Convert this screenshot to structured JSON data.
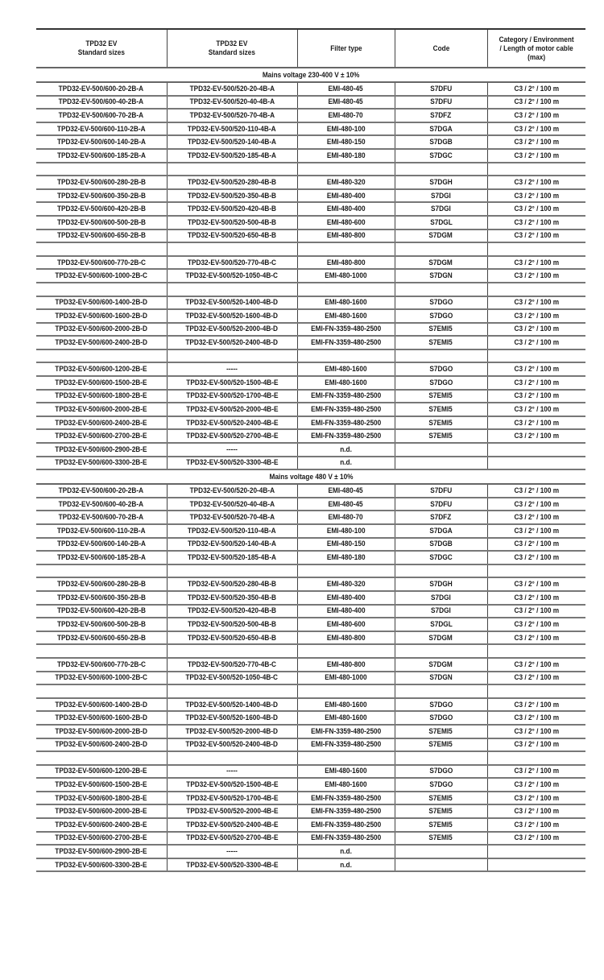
{
  "headers": [
    "TPD32 EV\nStandard sizes",
    "TPD32 EV\nStandard sizes",
    "Filter type",
    "Code",
    "Category / Environment\n/ Length of motor cable\n(max)"
  ],
  "sections": [
    {
      "title": "Mains voltage 230-400 V ± 10%",
      "rows": [
        [
          "TPD32-EV-500/600-20-2B-A",
          "TPD32-EV-500/520-20-4B-A",
          "EMI-480-45",
          "S7DFU",
          "C3 / 2° / 100 m"
        ],
        [
          "TPD32-EV-500/600-40-2B-A",
          "TPD32-EV-500/520-40-4B-A",
          "EMI-480-45",
          "S7DFU",
          "C3 / 2° / 100 m"
        ],
        [
          "TPD32-EV-500/600-70-2B-A",
          "TPD32-EV-500/520-70-4B-A",
          "EMI-480-70",
          "S7DFZ",
          "C3 / 2° / 100 m"
        ],
        [
          "TPD32-EV-500/600-110-2B-A",
          "TPD32-EV-500/520-110-4B-A",
          "EMI-480-100",
          "S7DGA",
          "C3 / 2° / 100 m"
        ],
        [
          "TPD32-EV-500/600-140-2B-A",
          "TPD32-EV-500/520-140-4B-A",
          "EMI-480-150",
          "S7DGB",
          "C3 / 2° / 100 m"
        ],
        [
          "TPD32-EV-500/600-185-2B-A",
          "TPD32-EV-500/520-185-4B-A",
          "EMI-480-180",
          "S7DGC",
          "C3 / 2° / 100 m"
        ],
        [
          "",
          "",
          "",
          "",
          ""
        ],
        [
          "TPD32-EV-500/600-280-2B-B",
          "TPD32-EV-500/520-280-4B-B",
          "EMI-480-320",
          "S7DGH",
          "C3 / 2° / 100 m"
        ],
        [
          "TPD32-EV-500/600-350-2B-B",
          "TPD32-EV-500/520-350-4B-B",
          "EMI-480-400",
          "S7DGI",
          "C3 / 2° / 100 m"
        ],
        [
          "TPD32-EV-500/600-420-2B-B",
          "TPD32-EV-500/520-420-4B-B",
          "EMI-480-400",
          "S7DGI",
          "C3 / 2° / 100 m"
        ],
        [
          "TPD32-EV-500/600-500-2B-B",
          "TPD32-EV-500/520-500-4B-B",
          "EMI-480-600",
          "S7DGL",
          "C3 / 2° / 100 m"
        ],
        [
          "TPD32-EV-500/600-650-2B-B",
          "TPD32-EV-500/520-650-4B-B",
          "EMI-480-800",
          "S7DGM",
          "C3 / 2° / 100 m"
        ],
        [
          "",
          "",
          "",
          "",
          ""
        ],
        [
          "TPD32-EV-500/600-770-2B-C",
          "TPD32-EV-500/520-770-4B-C",
          "EMI-480-800",
          "S7DGM",
          "C3 / 2° / 100 m"
        ],
        [
          "TPD32-EV-500/600-1000-2B-C",
          "TPD32-EV-500/520-1050-4B-C",
          "EMI-480-1000",
          "S7DGN",
          "C3 / 2° / 100 m"
        ],
        [
          "",
          "",
          "",
          "",
          ""
        ],
        [
          "TPD32-EV-500/600-1400-2B-D",
          "TPD32-EV-500/520-1400-4B-D",
          "EMI-480-1600",
          "S7DGO",
          "C3 / 2° / 100 m"
        ],
        [
          "TPD32-EV-500/600-1600-2B-D",
          "TPD32-EV-500/520-1600-4B-D",
          "EMI-480-1600",
          "S7DGO",
          "C3 / 2° / 100 m"
        ],
        [
          "TPD32-EV-500/600-2000-2B-D",
          "TPD32-EV-500/520-2000-4B-D",
          "EMI-FN-3359-480-2500",
          "S7EMI5",
          "C3 / 2° / 100 m"
        ],
        [
          "TPD32-EV-500/600-2400-2B-D",
          "TPD32-EV-500/520-2400-4B-D",
          "EMI-FN-3359-480-2500",
          "S7EMI5",
          "C3 / 2° / 100 m"
        ],
        [
          "",
          "",
          "",
          "",
          ""
        ],
        [
          "TPD32-EV-500/600-1200-2B-E",
          "-----",
          "EMI-480-1600",
          "S7DGO",
          "C3 / 2° / 100 m"
        ],
        [
          "TPD32-EV-500/600-1500-2B-E",
          "TPD32-EV-500/520-1500-4B-E",
          "EMI-480-1600",
          "S7DGO",
          "C3 / 2° / 100 m"
        ],
        [
          "TPD32-EV-500/600-1800-2B-E",
          "TPD32-EV-500/520-1700-4B-E",
          "EMI-FN-3359-480-2500",
          "S7EMI5",
          "C3 / 2° / 100 m"
        ],
        [
          "TPD32-EV-500/600-2000-2B-E",
          "TPD32-EV-500/520-2000-4B-E",
          "EMI-FN-3359-480-2500",
          "S7EMI5",
          "C3 / 2° / 100 m"
        ],
        [
          "TPD32-EV-500/600-2400-2B-E",
          "TPD32-EV-500/520-2400-4B-E",
          "EMI-FN-3359-480-2500",
          "S7EMI5",
          "C3 / 2° / 100 m"
        ],
        [
          "TPD32-EV-500/600-2700-2B-E",
          "TPD32-EV-500/520-2700-4B-E",
          "EMI-FN-3359-480-2500",
          "S7EMI5",
          "C3 / 2° / 100 m"
        ],
        [
          "TPD32-EV-500/600-2900-2B-E",
          "-----",
          "n.d.",
          "",
          ""
        ],
        [
          "TPD32-EV-500/600-3300-2B-E",
          "TPD32-EV-500/520-3300-4B-E",
          "n.d.",
          "",
          ""
        ]
      ]
    },
    {
      "title": "Mains voltage 480 V ± 10%",
      "rows": [
        [
          "TPD32-EV-500/600-20-2B-A",
          "TPD32-EV-500/520-20-4B-A",
          "EMI-480-45",
          "S7DFU",
          "C3 / 2° / 100 m"
        ],
        [
          "TPD32-EV-500/600-40-2B-A",
          "TPD32-EV-500/520-40-4B-A",
          "EMI-480-45",
          "S7DFU",
          "C3 / 2° / 100 m"
        ],
        [
          "TPD32-EV-500/600-70-2B-A",
          "TPD32-EV-500/520-70-4B-A",
          "EMI-480-70",
          "S7DFZ",
          "C3 / 2° / 100 m"
        ],
        [
          "TPD32-EV-500/600-110-2B-A",
          "TPD32-EV-500/520-110-4B-A",
          "EMI-480-100",
          "S7DGA",
          "C3 / 2° / 100 m"
        ],
        [
          "TPD32-EV-500/600-140-2B-A",
          "TPD32-EV-500/520-140-4B-A",
          "EMI-480-150",
          "S7DGB",
          "C3 / 2° / 100 m"
        ],
        [
          "TPD32-EV-500/600-185-2B-A",
          "TPD32-EV-500/520-185-4B-A",
          "EMI-480-180",
          "S7DGC",
          "C3 / 2° / 100 m"
        ],
        [
          "",
          "",
          "",
          "",
          ""
        ],
        [
          "TPD32-EV-500/600-280-2B-B",
          "TPD32-EV-500/520-280-4B-B",
          "EMI-480-320",
          "S7DGH",
          "C3 / 2° / 100 m"
        ],
        [
          "TPD32-EV-500/600-350-2B-B",
          "TPD32-EV-500/520-350-4B-B",
          "EMI-480-400",
          "S7DGI",
          "C3 / 2° / 100 m"
        ],
        [
          "TPD32-EV-500/600-420-2B-B",
          "TPD32-EV-500/520-420-4B-B",
          "EMI-480-400",
          "S7DGI",
          "C3 / 2° / 100 m"
        ],
        [
          "TPD32-EV-500/600-500-2B-B",
          "TPD32-EV-500/520-500-4B-B",
          "EMI-480-600",
          "S7DGL",
          "C3 / 2° / 100 m"
        ],
        [
          "TPD32-EV-500/600-650-2B-B",
          "TPD32-EV-500/520-650-4B-B",
          "EMI-480-800",
          "S7DGM",
          "C3 / 2° / 100 m"
        ],
        [
          "",
          "",
          "",
          "",
          ""
        ],
        [
          "TPD32-EV-500/600-770-2B-C",
          "TPD32-EV-500/520-770-4B-C",
          "EMI-480-800",
          "S7DGM",
          "C3 / 2° / 100 m"
        ],
        [
          "TPD32-EV-500/600-1000-2B-C",
          "TPD32-EV-500/520-1050-4B-C",
          "EMI-480-1000",
          "S7DGN",
          "C3 / 2° / 100 m"
        ],
        [
          "",
          "",
          "",
          "",
          ""
        ],
        [
          "TPD32-EV-500/600-1400-2B-D",
          "TPD32-EV-500/520-1400-4B-D",
          "EMI-480-1600",
          "S7DGO",
          "C3 / 2° / 100 m"
        ],
        [
          "TPD32-EV-500/600-1600-2B-D",
          "TPD32-EV-500/520-1600-4B-D",
          "EMI-480-1600",
          "S7DGO",
          "C3 / 2° / 100 m"
        ],
        [
          "TPD32-EV-500/600-2000-2B-D",
          "TPD32-EV-500/520-2000-4B-D",
          "EMI-FN-3359-480-2500",
          "S7EMI5",
          "C3 / 2° / 100 m"
        ],
        [
          "TPD32-EV-500/600-2400-2B-D",
          "TPD32-EV-500/520-2400-4B-D",
          "EMI-FN-3359-480-2500",
          "S7EMI5",
          "C3 / 2° / 100 m"
        ],
        [
          "",
          "",
          "",
          "",
          ""
        ],
        [
          "TPD32-EV-500/600-1200-2B-E",
          "-----",
          "EMI-480-1600",
          "S7DGO",
          "C3 / 2° / 100 m"
        ],
        [
          "TPD32-EV-500/600-1500-2B-E",
          "TPD32-EV-500/520-1500-4B-E",
          "EMI-480-1600",
          "S7DGO",
          "C3 / 2° / 100 m"
        ],
        [
          "TPD32-EV-500/600-1800-2B-E",
          "TPD32-EV-500/520-1700-4B-E",
          "EMI-FN-3359-480-2500",
          "S7EMI5",
          "C3 / 2° / 100 m"
        ],
        [
          "TPD32-EV-500/600-2000-2B-E",
          "TPD32-EV-500/520-2000-4B-E",
          "EMI-FN-3359-480-2500",
          "S7EMI5",
          "C3 / 2° / 100 m"
        ],
        [
          "TPD32-EV-500/600-2400-2B-E",
          "TPD32-EV-500/520-2400-4B-E",
          "EMI-FN-3359-480-2500",
          "S7EMI5",
          "C3 / 2° / 100 m"
        ],
        [
          "TPD32-EV-500/600-2700-2B-E",
          "TPD32-EV-500/520-2700-4B-E",
          "EMI-FN-3359-480-2500",
          "S7EMI5",
          "C3 / 2° / 100 m"
        ],
        [
          "TPD32-EV-500/600-2900-2B-E",
          "-----",
          "n.d.",
          "",
          ""
        ],
        [
          "TPD32-EV-500/600-3300-2B-E",
          "TPD32-EV-500/520-3300-4B-E",
          "n.d.",
          "",
          ""
        ]
      ]
    }
  ]
}
